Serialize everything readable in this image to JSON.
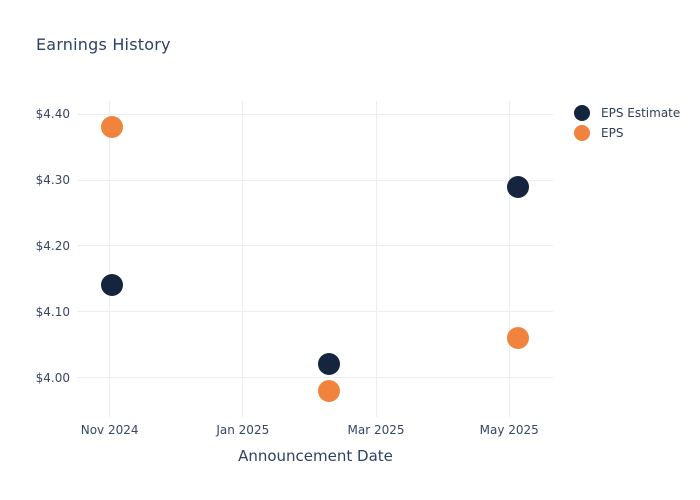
{
  "title": "Earnings History",
  "colors": {
    "background": "#ffffff",
    "title_text": "#2d4264",
    "tick_text": "#364764",
    "grid": "#e9eef6",
    "eps_estimate": "#16253e",
    "eps": "#f0843f"
  },
  "legend": {
    "items": [
      {
        "label": "EPS Estimate",
        "color": "#16253e"
      },
      {
        "label": "EPS",
        "color": "#f0843f"
      }
    ]
  },
  "chart_data": {
    "type": "scatter",
    "title": "Earnings History",
    "xlabel": "Announcement Date",
    "ylabel": "",
    "grid": true,
    "legend_position": "top-right",
    "x_range": [
      "2024-10-17",
      "2025-05-21"
    ],
    "y_range": [
      3.94,
      4.42
    ],
    "x_ticks": [
      {
        "label": "Nov 2024",
        "date": "2024-11-01"
      },
      {
        "label": "Jan 2025",
        "date": "2025-01-01"
      },
      {
        "label": "Mar 2025",
        "date": "2025-03-01"
      },
      {
        "label": "May 2025",
        "date": "2025-05-01"
      }
    ],
    "y_ticks": [
      {
        "label": "$4.40",
        "value": 4.4
      },
      {
        "label": "$4.30",
        "value": 4.3
      },
      {
        "label": "$4.20",
        "value": 4.2
      },
      {
        "label": "$4.10",
        "value": 4.1
      },
      {
        "label": "$4.00",
        "value": 4.0
      }
    ],
    "series": [
      {
        "name": "EPS Estimate",
        "color": "#16253e",
        "marker_size": 22,
        "points": [
          {
            "date": "2024-11-02",
            "value": 4.14
          },
          {
            "date": "2025-02-10",
            "value": 4.02
          },
          {
            "date": "2025-05-05",
            "value": 4.29
          }
        ]
      },
      {
        "name": "EPS",
        "color": "#f0843f",
        "marker_size": 22,
        "points": [
          {
            "date": "2024-11-02",
            "value": 4.38
          },
          {
            "date": "2025-02-10",
            "value": 3.98
          },
          {
            "date": "2025-05-05",
            "value": 4.06
          }
        ]
      }
    ]
  }
}
